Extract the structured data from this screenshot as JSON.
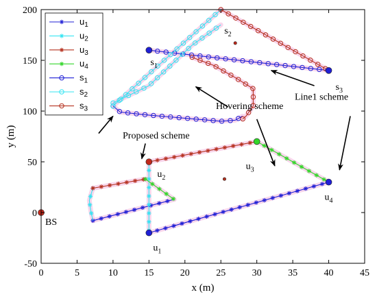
{
  "chart_data": {
    "type": "line",
    "xlabel": "x (m)",
    "ylabel": "y (m)",
    "xlim": [
      0,
      45
    ],
    "ylim": [
      -50,
      200
    ],
    "xticks": [
      0,
      5,
      10,
      15,
      20,
      25,
      30,
      35,
      40,
      45
    ],
    "yticks": [
      -50,
      0,
      50,
      100,
      150,
      200
    ],
    "grid": false,
    "legend": {
      "placement": "top-left",
      "entries": [
        {
          "label": "u",
          "sub": "1"
        },
        {
          "label": "u",
          "sub": "2"
        },
        {
          "label": "u",
          "sub": "3"
        },
        {
          "label": "u",
          "sub": "4"
        },
        {
          "label": "s",
          "sub": "1"
        },
        {
          "label": "s",
          "sub": "2"
        },
        {
          "label": "s",
          "sub": "3"
        }
      ]
    },
    "series": [
      {
        "name": "u1",
        "marker": "star",
        "color": "#1f1fd6",
        "segments": [
          [
            [
              15,
              -20
            ],
            [
              40,
              30
            ]
          ],
          [
            [
              7.2,
              -8
            ],
            [
              18.5,
              13
            ]
          ]
        ]
      },
      {
        "name": "u2",
        "marker": "star",
        "color": "#35e4f2",
        "segments": [
          [
            [
              15,
              50
            ],
            [
              15,
              -20
            ]
          ],
          [
            [
              7.2,
              24
            ],
            [
              6.7,
              12
            ],
            [
              6.9,
              2
            ],
            [
              7.2,
              -8
            ]
          ]
        ]
      },
      {
        "name": "u3",
        "marker": "star",
        "color": "#b5301e",
        "segments": [
          [
            [
              15,
              50
            ],
            [
              30,
              70
            ]
          ],
          [
            [
              7.2,
              24
            ],
            [
              14.5,
              33
            ]
          ]
        ]
      },
      {
        "name": "u4",
        "marker": "star",
        "color": "#33d62a",
        "segments": [
          [
            [
              30,
              70
            ],
            [
              40,
              30
            ]
          ],
          [
            [
              14.5,
              33
            ],
            [
              18.5,
              13
            ]
          ]
        ]
      },
      {
        "name": "s1",
        "marker": "circle",
        "color": "#1f1fd6",
        "segments": [
          [
            [
              15,
              160
            ],
            [
              40,
              140
            ]
          ],
          [
            [
              10,
              105
            ],
            [
              11,
              99
            ],
            [
              15,
              96
            ],
            [
              20,
              93
            ],
            [
              25,
              90
            ],
            [
              27,
              91
            ],
            [
              28,
              95
            ]
          ]
        ]
      },
      {
        "name": "s2",
        "marker": "circle",
        "color": "#35e4f2",
        "segments": [
          [
            [
              10,
              105
            ],
            [
              25,
              200
            ]
          ],
          [
            [
              10,
              108
            ],
            [
              15,
              125
            ],
            [
              18,
              145
            ],
            [
              21,
              165
            ],
            [
              25,
              185
            ]
          ]
        ]
      },
      {
        "name": "s3",
        "marker": "circle",
        "color": "#b5301e",
        "segments": [
          [
            [
              25,
              200
            ],
            [
              40,
              140
            ]
          ],
          [
            [
              21,
              153
            ],
            [
              24,
              145
            ],
            [
              27,
              133
            ],
            [
              29.5,
              122
            ],
            [
              29.5,
              105
            ],
            [
              28.5,
              95
            ],
            [
              28,
              92
            ]
          ]
        ]
      }
    ],
    "points": [
      {
        "name": "BS",
        "x": 0,
        "y": 0,
        "color": "#c0281a",
        "label": "BS"
      },
      {
        "name": "s1",
        "x": 15,
        "y": 160,
        "color": "#1f1fd6",
        "label": "s",
        "sub": "1"
      },
      {
        "name": "s2",
        "x": 27,
        "y": 167,
        "color": "#c0281a",
        "label": "s",
        "sub": "2"
      },
      {
        "name": "s3",
        "x": 40,
        "y": 140,
        "color": "#1f1fd6",
        "label": "s",
        "sub": "3"
      },
      {
        "name": "u1",
        "x": 15,
        "y": -20,
        "color": "#1f1fd6",
        "label": "u",
        "sub": "1"
      },
      {
        "name": "u2",
        "x": 15,
        "y": 50,
        "color": "#c0281a",
        "label": "u",
        "sub": "2"
      },
      {
        "name": "u3",
        "x": 30,
        "y": 70,
        "color": "#33d62a",
        "label": "u",
        "sub": "3"
      },
      {
        "name": "u4",
        "x": 40,
        "y": 30,
        "color": "#1f1fd6",
        "label": "u",
        "sub": "4"
      },
      {
        "name": "hover-u",
        "x": 25.5,
        "y": 33,
        "color": "#b5301e",
        "label": ""
      }
    ],
    "annotations": [
      {
        "text": "Proposed scheme",
        "tx": 16,
        "ty": 73,
        "arrows": [
          [
            8,
            78,
            10,
            95
          ],
          [
            14.5,
            68,
            14,
            53
          ]
        ]
      },
      {
        "text": "Hovering scheme",
        "tx": 29,
        "ty": 102,
        "arrows": [
          [
            26,
            104,
            21.5,
            124
          ],
          [
            30,
            92,
            32.5,
            46
          ]
        ]
      },
      {
        "text": "Line1 scheme",
        "tx": 39,
        "ty": 111,
        "arrows": [
          [
            38,
            125,
            32,
            140
          ],
          [
            43,
            95,
            41.5,
            42
          ]
        ]
      }
    ]
  }
}
